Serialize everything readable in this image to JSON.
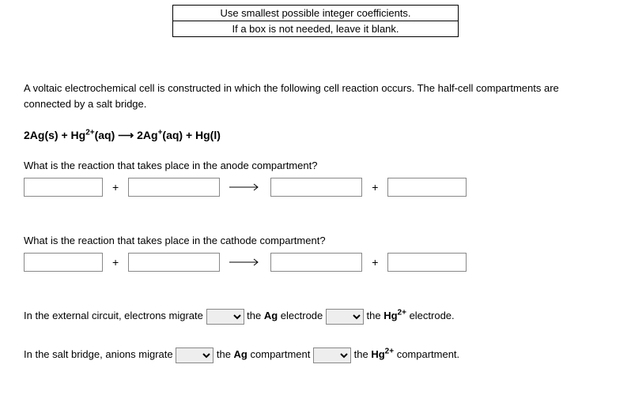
{
  "hint": {
    "line1": "Use smallest possible integer coefficients.",
    "line2": "If a box is not needed, leave it blank."
  },
  "intro": "A voltaic electrochemical cell is constructed in which the following cell reaction occurs. The half-cell compartments are connected by a salt bridge.",
  "equation_html": "2Ag(s) + Hg<sup>2+</sup>(aq) &#10230; 2Ag<sup>+</sup>(aq) + Hg(l)",
  "q_anode": "What is the reaction that takes place in the anode compartment?",
  "q_cathode": "What is the reaction that takes place in the cathode compartment?",
  "anode_boxes": {
    "r1": "",
    "r2": "",
    "p1": "",
    "p2": ""
  },
  "cathode_boxes": {
    "r1": "",
    "r2": "",
    "p1": "",
    "p2": ""
  },
  "plus": "+",
  "sentence1": {
    "pre": "In the external circuit, electrons migrate ",
    "mid1": " the ",
    "electrode1_html": "<b>Ag</b>",
    "mid2": " electrode ",
    "electrode2_html": "<b>Hg<sup>2+</sup></b>",
    "post": " electrode.",
    "dd1": "",
    "dd2": ""
  },
  "sentence2": {
    "pre": "In the salt bridge, anions migrate ",
    "mid1": " the ",
    "comp1_html": "<b>Ag</b>",
    "mid2": " compartment ",
    "comp2_html": "<b>Hg<sup>2+</sup></b>",
    "post": " compartment.",
    "dd1": "",
    "dd2": ""
  },
  "mid_the": " the "
}
